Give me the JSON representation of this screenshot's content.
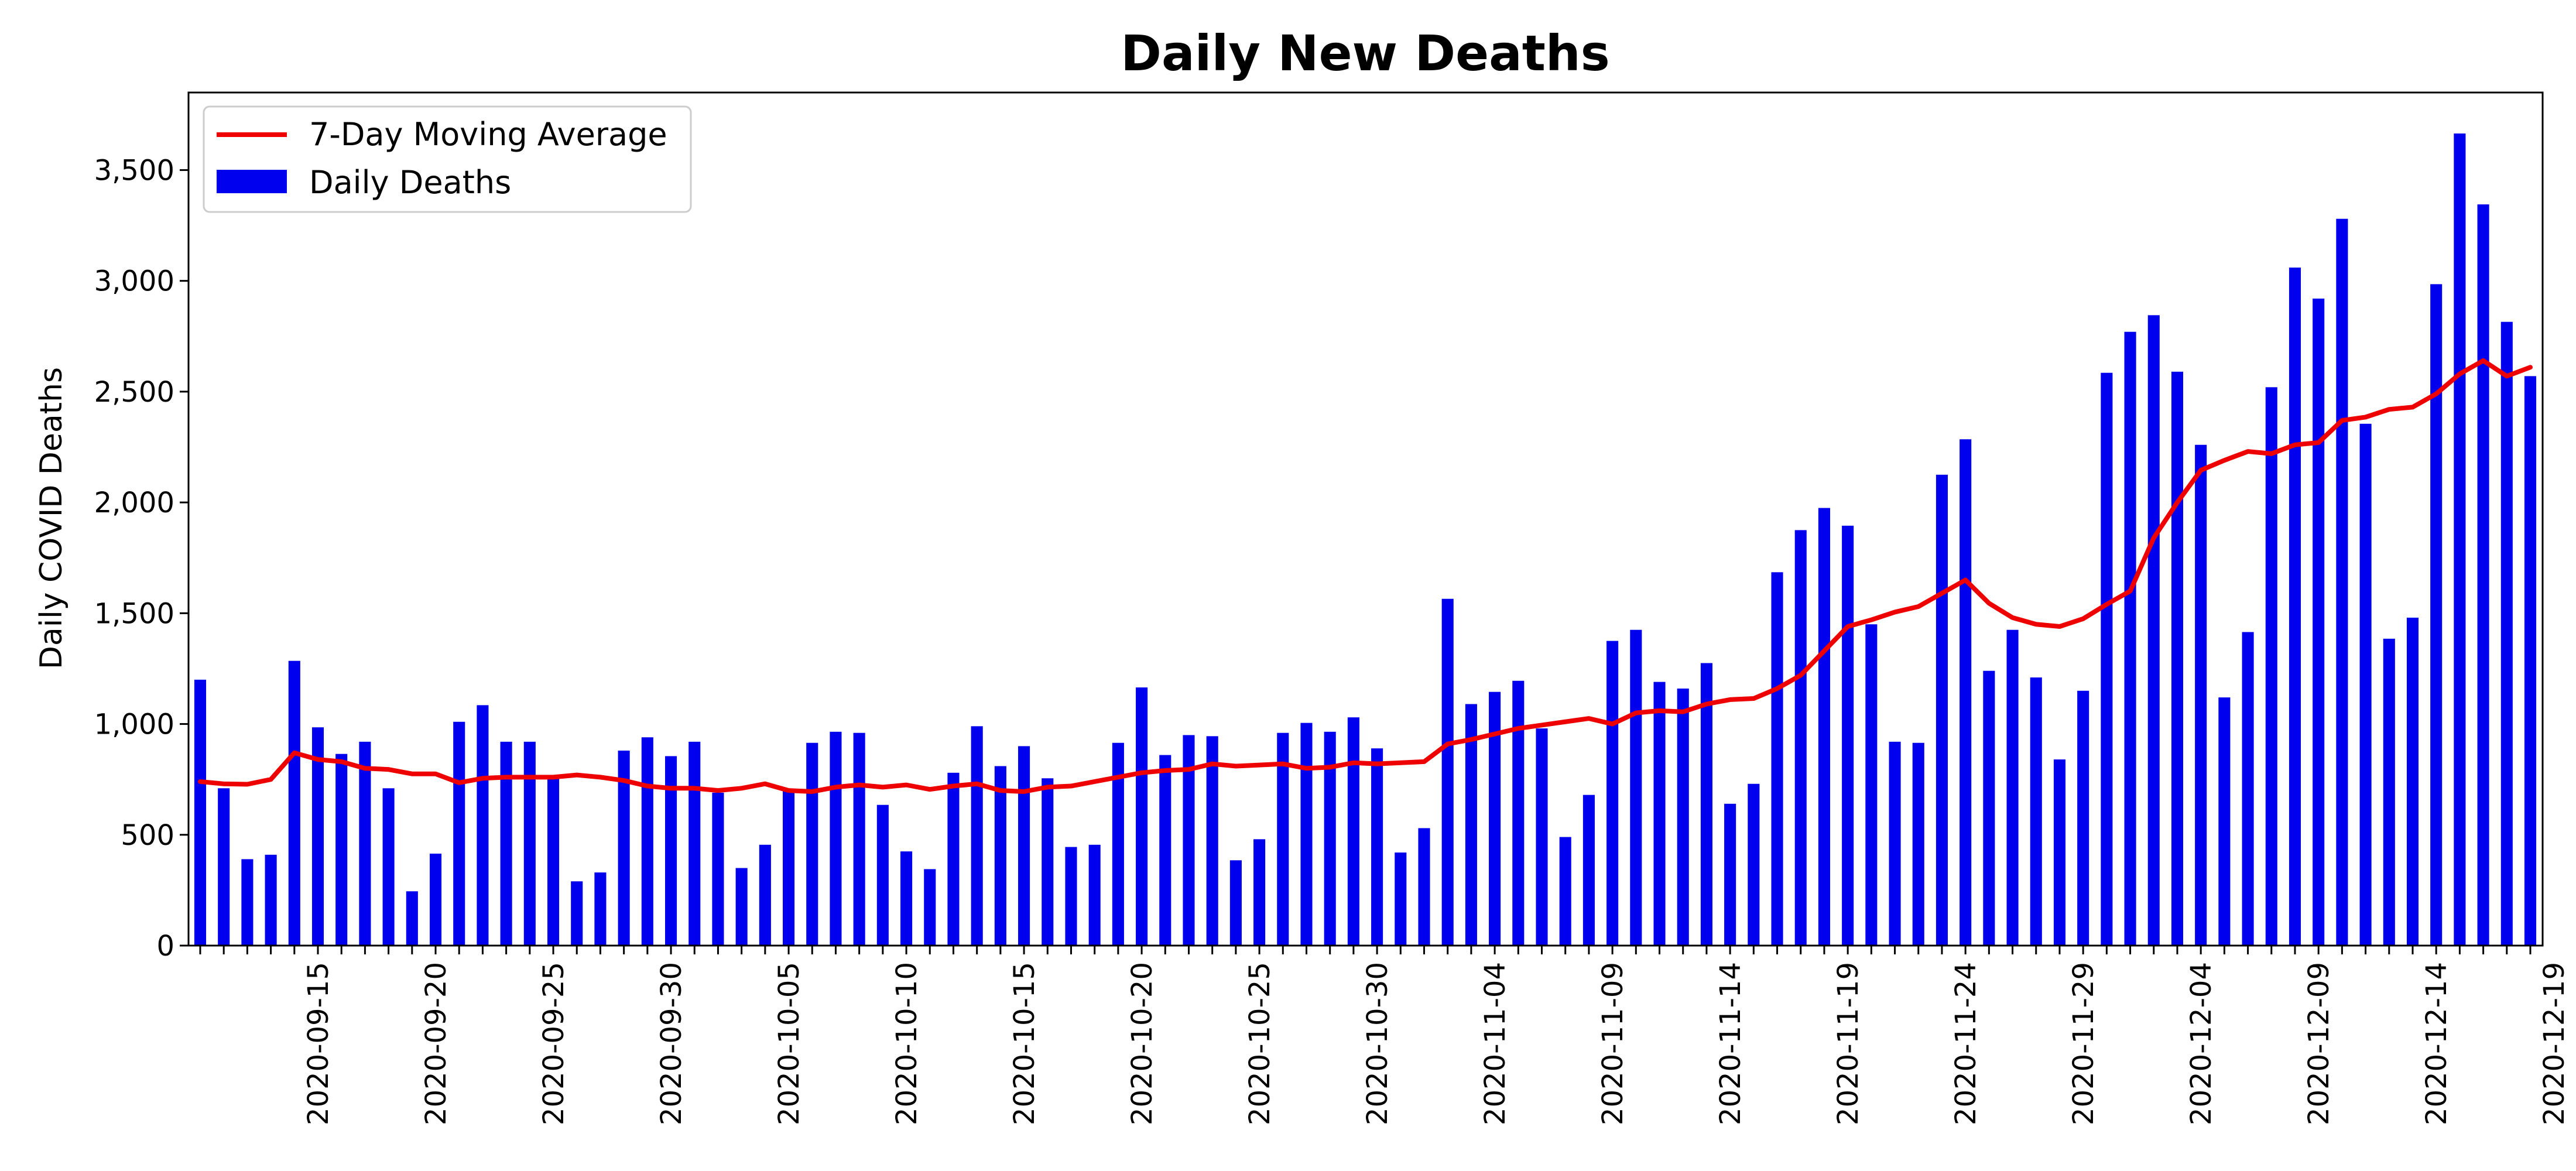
{
  "chart_data": {
    "type": "bar",
    "title": "Daily New Deaths",
    "xlabel": "",
    "ylabel": "Daily COVID Deaths",
    "ylim": [
      0,
      3850
    ],
    "yticks": [
      0,
      500,
      1000,
      1500,
      2000,
      2500,
      3000,
      3500
    ],
    "ytick_labels": [
      "0",
      "500",
      "1,000",
      "1,500",
      "2,000",
      "2,500",
      "3,000",
      "3,500"
    ],
    "grid": false,
    "legend_position": "top-left",
    "start_date": "2020-09-10",
    "xtick_labels": [
      "2020-09-15",
      "2020-09-20",
      "2020-09-25",
      "2020-09-30",
      "2020-10-05",
      "2020-10-10",
      "2020-10-15",
      "2020-10-20",
      "2020-10-25",
      "2020-10-30",
      "2020-11-04",
      "2020-11-09",
      "2020-11-14",
      "2020-11-19",
      "2020-11-24",
      "2020-11-29",
      "2020-12-04",
      "2020-12-09",
      "2020-12-14",
      "2020-12-19"
    ],
    "series": [
      {
        "name": "Daily Deaths",
        "kind": "bar",
        "color": "#0000ee",
        "values": [
          1200,
          710,
          390,
          410,
          1285,
          985,
          865,
          920,
          710,
          245,
          415,
          1010,
          1085,
          920,
          920,
          770,
          290,
          330,
          880,
          940,
          855,
          920,
          690,
          350,
          455,
          700,
          915,
          965,
          960,
          635,
          425,
          345,
          780,
          990,
          810,
          900,
          755,
          445,
          455,
          915,
          1165,
          860,
          950,
          945,
          385,
          480,
          960,
          1005,
          965,
          1030,
          890,
          420,
          530,
          1565,
          1090,
          1145,
          1195,
          980,
          490,
          680,
          1375,
          1425,
          1190,
          1160,
          1275,
          640,
          730,
          1685,
          1875,
          1975,
          1895,
          1450,
          920,
          915,
          2125,
          2285,
          1240,
          1425,
          1210,
          840,
          1150,
          2585,
          2770,
          2845,
          2590,
          2260,
          1120,
          1415,
          2520,
          3060,
          2920,
          3280,
          2355,
          1385,
          1480,
          2985,
          3665,
          3345,
          2815,
          2570
        ]
      },
      {
        "name": "7-Day Moving Average",
        "kind": "line",
        "color": "#ee0000",
        "values": [
          740,
          730,
          728,
          750,
          870,
          840,
          830,
          800,
          795,
          775,
          775,
          735,
          755,
          760,
          760,
          760,
          770,
          760,
          745,
          720,
          710,
          710,
          700,
          710,
          730,
          700,
          695,
          715,
          725,
          715,
          725,
          705,
          720,
          730,
          700,
          695,
          715,
          720,
          740,
          760,
          780,
          790,
          795,
          820,
          810,
          815,
          820,
          800,
          805,
          825,
          820,
          825,
          830,
          910,
          930,
          955,
          980,
          995,
          1010,
          1025,
          1000,
          1050,
          1060,
          1055,
          1090,
          1110,
          1115,
          1160,
          1220,
          1330,
          1440,
          1470,
          1505,
          1530,
          1590,
          1650,
          1545,
          1480,
          1450,
          1440,
          1475,
          1540,
          1600,
          1840,
          2000,
          2145,
          2190,
          2230,
          2220,
          2260,
          2270,
          2370,
          2385,
          2420,
          2430,
          2490,
          2580,
          2640,
          2570,
          2610
        ]
      }
    ]
  }
}
